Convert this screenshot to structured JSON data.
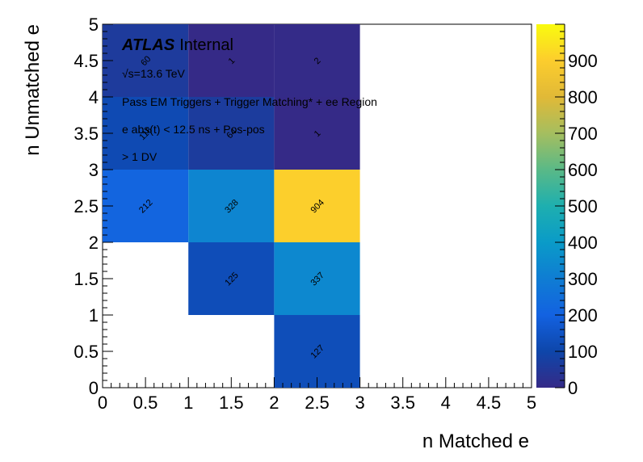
{
  "chart_data": {
    "type": "heatmap",
    "xlabel": "n Matched e",
    "ylabel": "n Unmatched e",
    "xlim": [
      0,
      5
    ],
    "ylim": [
      0,
      5
    ],
    "zlim": [
      0,
      1000
    ],
    "x_ticks": [
      "0",
      "0.5",
      "1",
      "1.5",
      "2",
      "2.5",
      "3",
      "3.5",
      "4",
      "4.5",
      "5"
    ],
    "y_ticks": [
      "0",
      "0.5",
      "1",
      "1.5",
      "2",
      "2.5",
      "3",
      "3.5",
      "4",
      "4.5",
      "5"
    ],
    "z_ticks": [
      "0",
      "100",
      "200",
      "300",
      "400",
      "500",
      "600",
      "700",
      "800",
      "900"
    ],
    "colormap": "parula",
    "cells": [
      {
        "x": 2,
        "y": 0,
        "value": 127,
        "label": "127"
      },
      {
        "x": 1,
        "y": 1,
        "value": 125,
        "label": "125"
      },
      {
        "x": 2,
        "y": 1,
        "value": 337,
        "label": "337"
      },
      {
        "x": 0,
        "y": 2,
        "value": 212,
        "label": "212"
      },
      {
        "x": 1,
        "y": 2,
        "value": 328,
        "label": "328"
      },
      {
        "x": 2,
        "y": 2,
        "value": 904,
        "label": "904"
      },
      {
        "x": 0,
        "y": 3,
        "value": 116,
        "label": "116"
      },
      {
        "x": 1,
        "y": 3,
        "value": 64,
        "label": "64"
      },
      {
        "x": 2,
        "y": 3,
        "value": 1,
        "label": "1"
      },
      {
        "x": 0,
        "y": 4,
        "value": 60,
        "label": "60"
      },
      {
        "x": 1,
        "y": 4,
        "value": 1,
        "label": "1"
      },
      {
        "x": 2,
        "y": 4,
        "value": 2,
        "label": "2"
      }
    ],
    "annotations": {
      "experiment": "ATLAS",
      "status": "Internal",
      "energy": "√s=13.6 TeV",
      "selection": "Pass EM Triggers + Trigger Matching* + ee Region",
      "cut": "e abs(t) < 12.5 ns + Pos-pos",
      "dv": "> 1 DV"
    }
  }
}
